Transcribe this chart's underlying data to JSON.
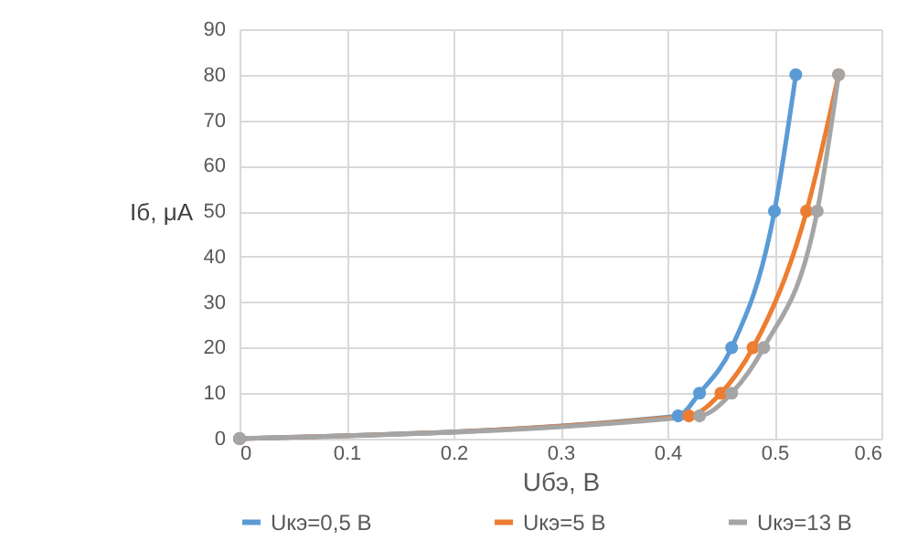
{
  "chart_data": {
    "type": "line",
    "xlabel": "Uбэ, В",
    "ylabel": "Iб, μA",
    "xlim": [
      0,
      0.6
    ],
    "xticks": [
      0,
      0.1,
      0.2,
      0.3,
      0.4,
      0.5,
      0.6
    ],
    "ylim": [
      0,
      90
    ],
    "yticks": [
      0,
      10,
      20,
      30,
      40,
      50,
      60,
      70,
      80,
      90
    ],
    "grid": true,
    "legend": "bottom",
    "marker": "circle",
    "line_style": "solid",
    "series": [
      {
        "name": "Uкэ=0,5 В",
        "color": "#5b9bd5",
        "x": [
          0,
          0.41,
          0.43,
          0.46,
          0.5,
          0.52
        ],
        "values": [
          0,
          5,
          10,
          20,
          50,
          80
        ]
      },
      {
        "name": "Uкэ=5 В",
        "color": "#ed7d31",
        "x": [
          0,
          0.42,
          0.45,
          0.48,
          0.53,
          0.56
        ],
        "values": [
          0,
          5,
          10,
          20,
          50,
          80
        ]
      },
      {
        "name": "Uкэ=13 В",
        "color": "#a5a5a5",
        "x": [
          0,
          0.43,
          0.46,
          0.49,
          0.54,
          0.56
        ],
        "values": [
          0,
          5,
          10,
          20,
          50,
          80
        ]
      }
    ]
  }
}
